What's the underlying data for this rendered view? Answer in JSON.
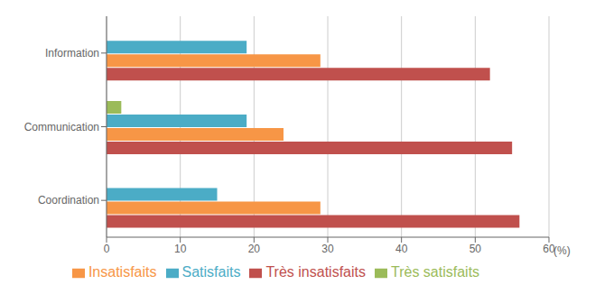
{
  "chart_data": {
    "type": "bar",
    "orientation": "horizontal",
    "categories": [
      "Information",
      "Communication",
      "Coordination"
    ],
    "series": [
      {
        "name": "Très satisfaits",
        "color": "#9BBB59",
        "values": [
          0,
          2,
          0
        ]
      },
      {
        "name": "Satisfaits",
        "color": "#4BACC6",
        "values": [
          19,
          19,
          15
        ]
      },
      {
        "name": "Insatisfaits",
        "color": "#F79646",
        "values": [
          29,
          24,
          29
        ]
      },
      {
        "name": "Très insatisfaits",
        "color": "#C0504D",
        "values": [
          52,
          55,
          56
        ]
      }
    ],
    "xlabel": "(%)",
    "xlim": [
      0,
      60
    ],
    "xticks": [
      0,
      10,
      20,
      30,
      40,
      50,
      60
    ],
    "grid": true,
    "legend": "bottom"
  }
}
